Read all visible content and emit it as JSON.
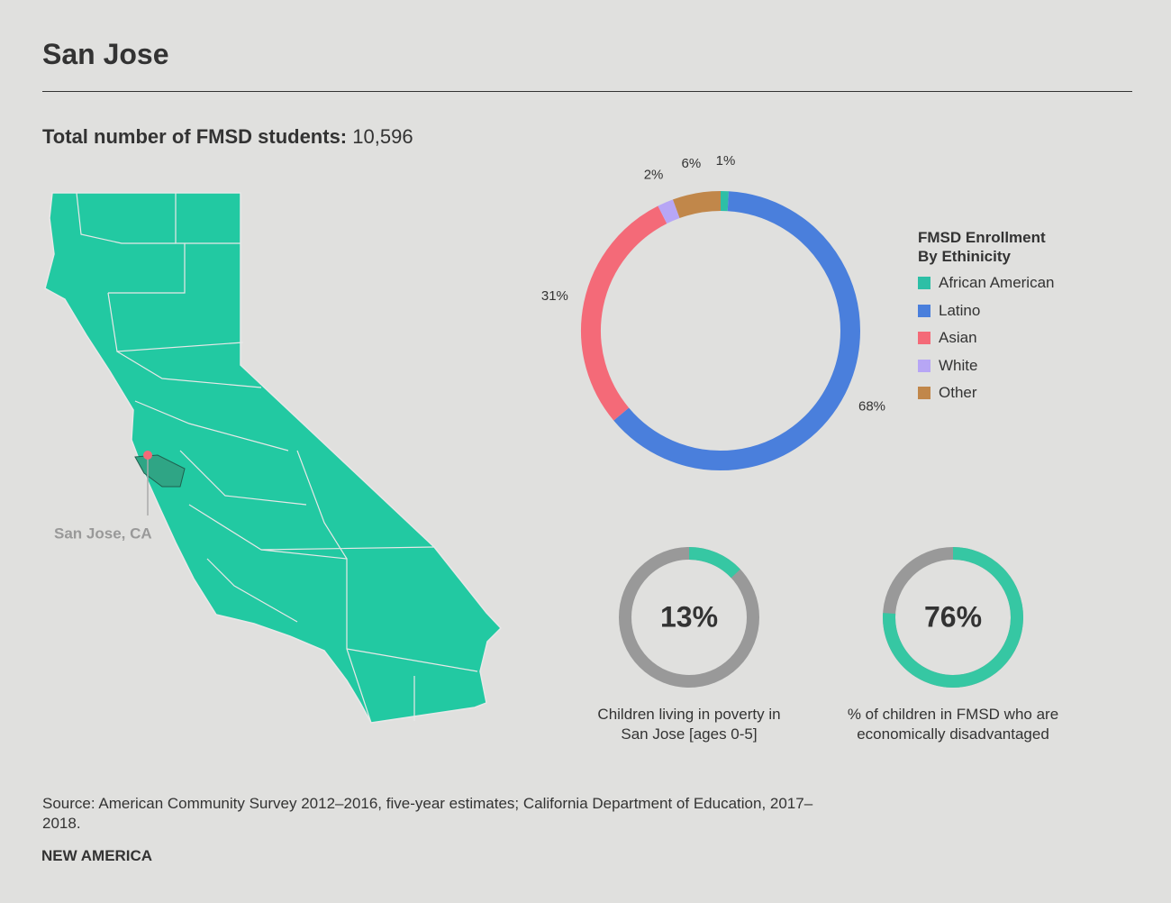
{
  "header": {
    "title": "San Jose"
  },
  "stat": {
    "label": "Total number of FMSD students:",
    "value": "10,596"
  },
  "map": {
    "label": "San Jose, CA"
  },
  "chart_data": [
    {
      "type": "donut",
      "legend_title": "FMSD Enrollment By Ethinicity",
      "categories": [
        "African American",
        "Latino",
        "Asian",
        "White",
        "Other"
      ],
      "values": [
        1,
        68,
        31,
        2,
        6
      ],
      "value_labels": [
        "1%",
        "68%",
        "31%",
        "2%",
        "6%"
      ],
      "colors": [
        "#2dbfa6",
        "#4a7fdc",
        "#f46a78",
        "#b7a6f5",
        "#c1874a"
      ]
    },
    {
      "type": "ring",
      "value": 13,
      "value_label": "13%",
      "ylim": [
        0,
        100
      ],
      "caption": "Children living in poverty in San Jose [ages 0-5]",
      "color": "#36c7a3",
      "track_color": "#999999"
    },
    {
      "type": "ring",
      "value": 76,
      "value_label": "76%",
      "ylim": [
        0,
        100
      ],
      "caption": "% of children in FMSD who are economically disadvantaged",
      "color": "#36c7a3",
      "track_color": "#999999"
    }
  ],
  "source": "Source: American Community Survey 2012–2016, five-year estimates; California Department of Education, 2017–2018.",
  "footer": {
    "logo": "NEW AMERICA"
  }
}
